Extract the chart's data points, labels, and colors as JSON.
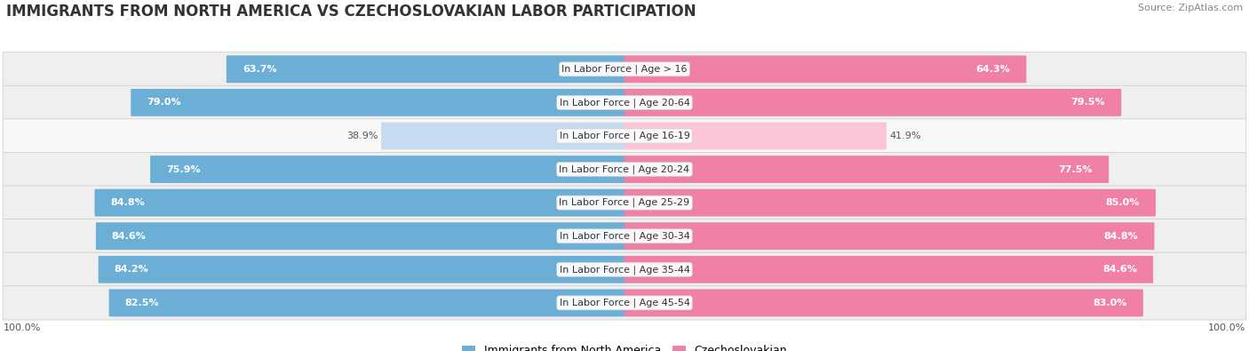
{
  "title": "IMMIGRANTS FROM NORTH AMERICA VS CZECHOSLOVAKIAN LABOR PARTICIPATION",
  "source": "Source: ZipAtlas.com",
  "categories": [
    "In Labor Force | Age > 16",
    "In Labor Force | Age 20-64",
    "In Labor Force | Age 16-19",
    "In Labor Force | Age 20-24",
    "In Labor Force | Age 25-29",
    "In Labor Force | Age 30-34",
    "In Labor Force | Age 35-44",
    "In Labor Force | Age 45-54"
  ],
  "north_america_values": [
    63.7,
    79.0,
    38.9,
    75.9,
    84.8,
    84.6,
    84.2,
    82.5
  ],
  "czechoslovakian_values": [
    64.3,
    79.5,
    41.9,
    77.5,
    85.0,
    84.8,
    84.6,
    83.0
  ],
  "north_america_color": "#6baed6",
  "north_america_color_light": "#c6dbef",
  "czechoslovakian_color": "#f080a8",
  "czechoslovakian_color_light": "#fcc5d8",
  "row_bg_color": "#efefef",
  "row_bg_color_light": "#f8f8f8",
  "row_border_color": "#d0d0d0",
  "max_value": 100.0,
  "legend_na": "Immigrants from North America",
  "legend_cz": "Czechoslovakian",
  "title_fontsize": 12,
  "source_fontsize": 8,
  "label_fontsize": 8,
  "value_fontsize": 8,
  "axis_label_fontsize": 8,
  "light_rows": [
    2
  ],
  "figsize": [
    14.06,
    3.95
  ]
}
